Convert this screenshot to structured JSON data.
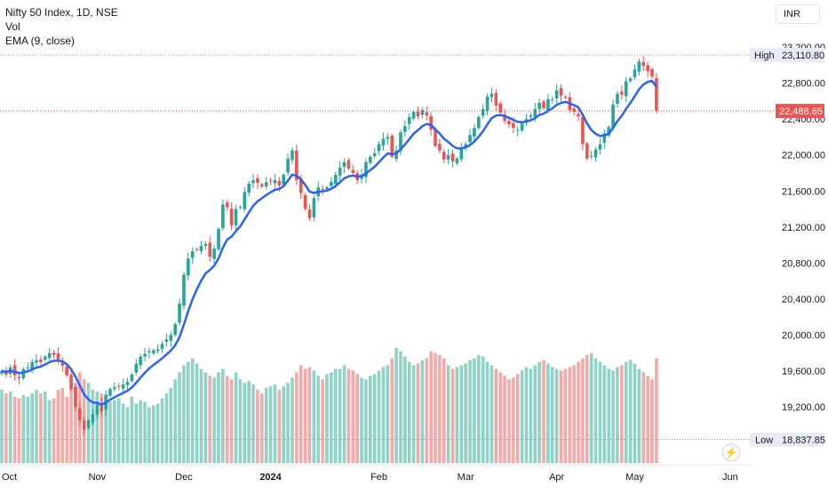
{
  "legend": {
    "symbol": "Nifty 50 Index, 1D, NSE",
    "volume": "Vol",
    "ema": "EMA (9, close)"
  },
  "currency": "INR",
  "price_labels": {
    "high_label": "High",
    "high_value": "23,110.80",
    "low_label": "Low",
    "low_value": "18,837.85",
    "last_value": "22,488.65"
  },
  "icons": {
    "alert": "lightning-icon"
  },
  "colors": {
    "up": "#26a69a",
    "down": "#ef5350",
    "ema": "#2962ff",
    "vol_up": "#8fd3c8",
    "vol_down": "#f7a9a7",
    "axis_text": "#131722"
  },
  "chart_data": {
    "type": "candlestick",
    "title": "Nifty 50 Index, 1D, NSE",
    "ylim": [
      18600,
      23300
    ],
    "y_ticks": [
      "23,200.00",
      "22,800.00",
      "22,400.00",
      "22,000.00",
      "21,600.00",
      "21,200.00",
      "20,800.00",
      "20,400.00",
      "20,000.00",
      "19,600.00",
      "19,200.00"
    ],
    "y_tick_values": [
      23200,
      22800,
      22400,
      22000,
      21600,
      21200,
      20800,
      20400,
      20000,
      19600,
      19200
    ],
    "x_ticks": [
      {
        "label": "Oct",
        "bold": false
      },
      {
        "label": "Nov",
        "bold": false
      },
      {
        "label": "Dec",
        "bold": false
      },
      {
        "label": "2024",
        "bold": true
      },
      {
        "label": "Feb",
        "bold": false
      },
      {
        "label": "Mar",
        "bold": false
      },
      {
        "label": "Apr",
        "bold": false
      },
      {
        "label": "May",
        "bold": false
      },
      {
        "label": "Jun",
        "bold": false
      }
    ],
    "x_tick_index": [
      0,
      22,
      42,
      62,
      87,
      107,
      128,
      146,
      168
    ],
    "high": 23110.8,
    "low": 18837.85,
    "last": 22488.65,
    "close": [
      19600,
      19560,
      19640,
      19550,
      19520,
      19620,
      19640,
      19700,
      19720,
      19700,
      19760,
      19800,
      19780,
      19730,
      19660,
      19550,
      19400,
      19200,
      19050,
      18950,
      19050,
      19120,
      19230,
      19150,
      19340,
      19400,
      19420,
      19430,
      19450,
      19480,
      19560,
      19680,
      19760,
      19790,
      19820,
      19830,
      19840,
      19900,
      19950,
      20000,
      20120,
      20350,
      20670,
      20850,
      20930,
      20950,
      20990,
      21010,
      20870,
      20960,
      21180,
      21450,
      21420,
      21220,
      21400,
      21420,
      21590,
      21680,
      21720,
      21690,
      21650,
      21700,
      21710,
      21720,
      21660,
      21780,
      21960,
      22050,
      21720,
      21580,
      21400,
      21300,
      21520,
      21640,
      21620,
      21640,
      21700,
      21780,
      21860,
      21920,
      21850,
      21800,
      21720,
      21780,
      21920,
      21980,
      22020,
      22120,
      22180,
      22200,
      21980,
      22050,
      22250,
      22320,
      22420,
      22480,
      22430,
      22500,
      22440,
      22280,
      22100,
      22050,
      21950,
      22000,
      21930,
      21960,
      22080,
      22120,
      22220,
      22300,
      22420,
      22510,
      22650,
      22680,
      22550,
      22470,
      22380,
      22340,
      22300,
      22280,
      22350,
      22400,
      22440,
      22510,
      22580,
      22520,
      22620,
      22620,
      22720,
      22660,
      22640,
      22500,
      22480,
      22430,
      22120,
      21960,
      21990,
      22060,
      22120,
      22240,
      22310,
      22560,
      22680,
      22670,
      22820,
      22850,
      22950,
      23040,
      22990,
      22930,
      22870,
      22490
    ],
    "volume": [
      210,
      200,
      205,
      190,
      185,
      195,
      190,
      200,
      210,
      200,
      205,
      180,
      185,
      210,
      215,
      190,
      220,
      230,
      260,
      240,
      230,
      210,
      205,
      200,
      180,
      175,
      180,
      185,
      170,
      160,
      190,
      170,
      180,
      175,
      160,
      165,
      170,
      185,
      200,
      215,
      240,
      260,
      280,
      290,
      300,
      285,
      270,
      260,
      250,
      245,
      260,
      270,
      250,
      240,
      260,
      240,
      230,
      235,
      225,
      210,
      200,
      215,
      220,
      225,
      210,
      220,
      230,
      245,
      260,
      280,
      270,
      275,
      265,
      250,
      240,
      255,
      260,
      270,
      270,
      280,
      270,
      265,
      255,
      245,
      240,
      250,
      255,
      265,
      275,
      280,
      300,
      330,
      320,
      305,
      290,
      280,
      285,
      295,
      300,
      320,
      315,
      310,
      300,
      280,
      270,
      275,
      280,
      285,
      295,
      300,
      310,
      305,
      290,
      280,
      270,
      260,
      250,
      240,
      245,
      255,
      265,
      275,
      270,
      280,
      290,
      295,
      285,
      275,
      270,
      265,
      270,
      275,
      280,
      290,
      300,
      310,
      315,
      300,
      290,
      280,
      270,
      265,
      275,
      280,
      290,
      295,
      285,
      270,
      260,
      250,
      240,
      300
    ]
  }
}
